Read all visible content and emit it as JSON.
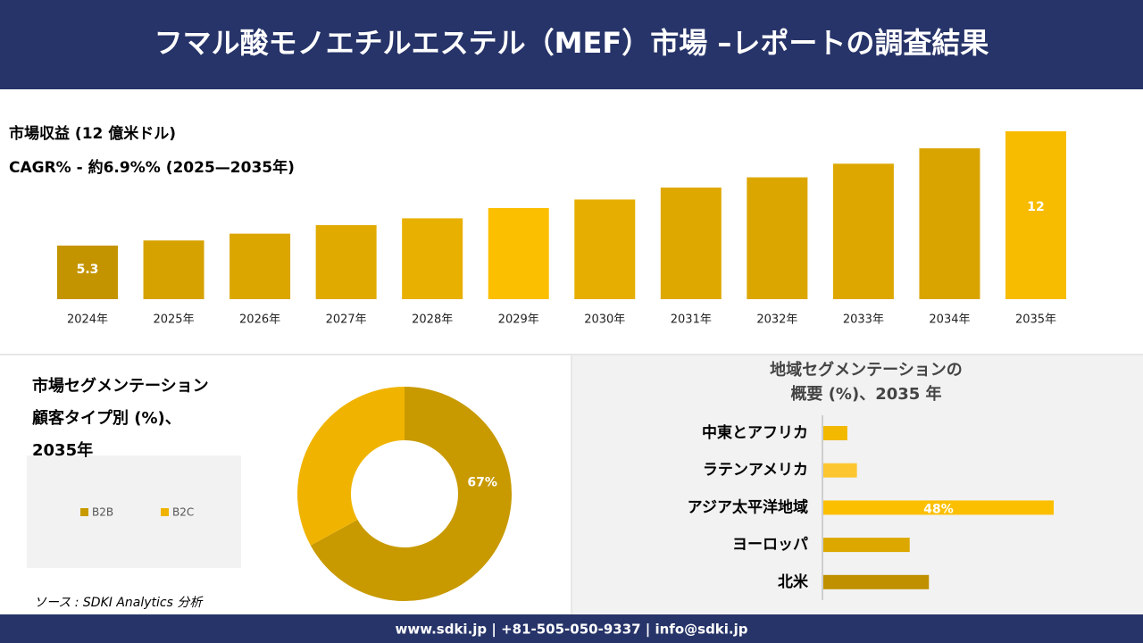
{
  "header": {
    "title": "フマル酸モノエチルエステル（MEF）市場 –レポートの調査結果"
  },
  "chart_data": [
    {
      "type": "bar",
      "subtitle": [
        "市場収益 (12 億米ドル)",
        "CAGR% - 約6.9%% (2025—2035年)"
      ],
      "categories": [
        "2024年",
        "2025年",
        "2026年",
        "2027年",
        "2028年",
        "2029年",
        "2030年",
        "2031年",
        "2032年",
        "2033年",
        "2034年",
        "2035年"
      ],
      "values": [
        5.3,
        5.6,
        6.0,
        6.5,
        6.9,
        7.5,
        8.0,
        8.7,
        9.3,
        10.1,
        11.0,
        12
      ],
      "value_labels": [
        "5.3",
        null,
        null,
        null,
        null,
        null,
        null,
        null,
        null,
        null,
        null,
        "12"
      ],
      "colors": [
        "#c49400",
        "#d6a200",
        "#dba600",
        "#e0aa00",
        "#e8b000",
        "#fbbf00",
        "#e6ae00",
        "#dfa800",
        "#dca600",
        "#dda700",
        "#d9a400",
        "#f7bc00"
      ]
    },
    {
      "type": "donut",
      "title": [
        "市場セグメンテーション",
        "顧客タイプ別 (%)、",
        "2035年"
      ],
      "categories": [
        "B2B",
        "B2C"
      ],
      "values": [
        67,
        33
      ],
      "value_labels": [
        "67%",
        null
      ],
      "colors": [
        "#c89a00",
        "#f0b400"
      ]
    },
    {
      "type": "hbar",
      "title": [
        "地域セグメンテーションの",
        "概要 (%)、2035 年"
      ],
      "categories": [
        "中東とアフリカ",
        "ラテンアメリカ",
        "アジア太平洋地域",
        "ヨーロッパ",
        "北米"
      ],
      "values": [
        5,
        7,
        48,
        18,
        22
      ],
      "value_labels": [
        null,
        null,
        "48%",
        null,
        null
      ],
      "colors": [
        "#f3b800",
        "#fcc630",
        "#fbbf00",
        "#dca800",
        "#c09000"
      ]
    }
  ],
  "source": "ソース : SDKI Analytics 分析",
  "footer": {
    "contact": "www.sdki.jp | +81-505-050-9337 | info@sdki.jp"
  }
}
